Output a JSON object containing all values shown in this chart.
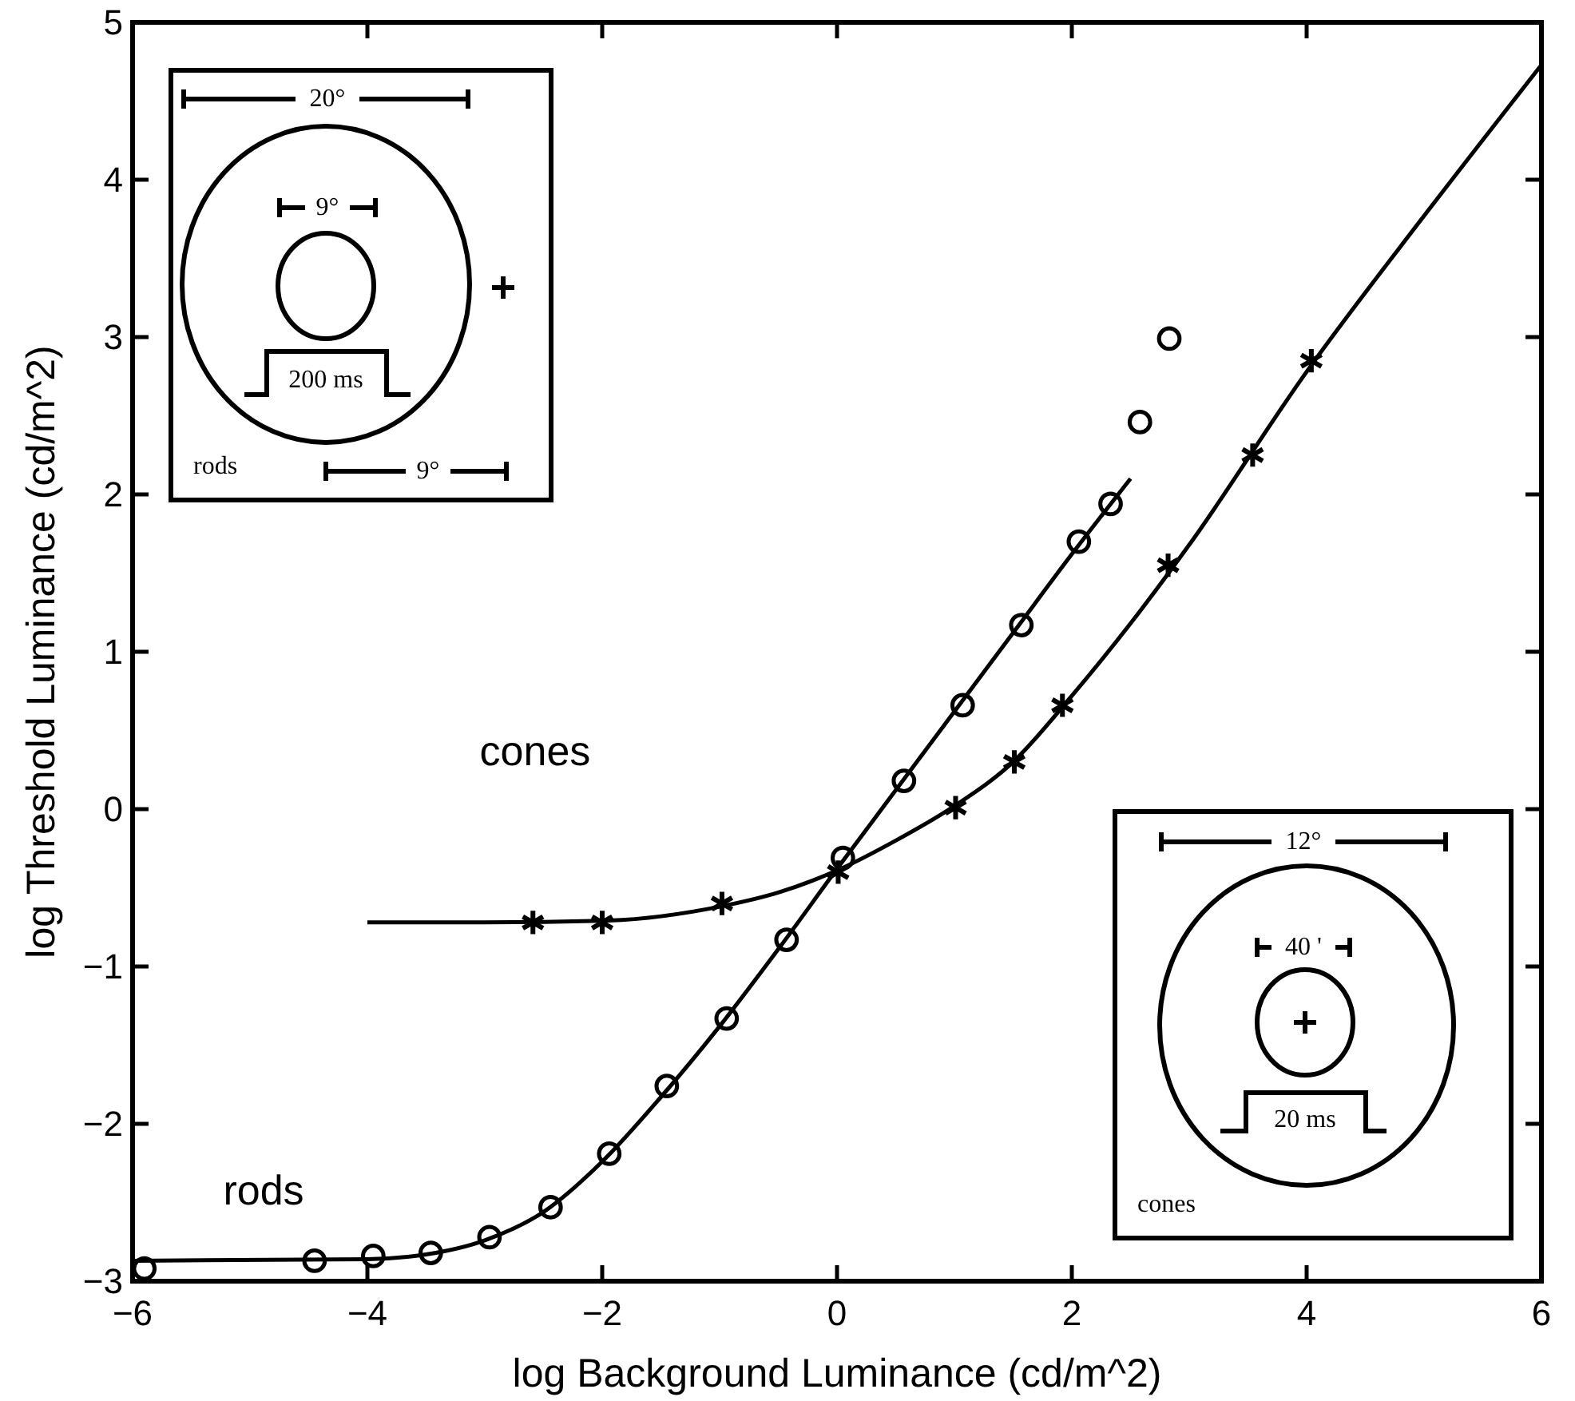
{
  "chart_data": {
    "type": "line",
    "xlabel": "log Background Luminance (cd/m^2)",
    "ylabel": "log Threshold Luminance (cd/m^2)",
    "xlim": [
      -6,
      6
    ],
    "ylim": [
      -3,
      5
    ],
    "xticks": [
      -6,
      -4,
      -2,
      0,
      2,
      4,
      6
    ],
    "yticks": [
      -3,
      -2,
      -1,
      0,
      1,
      2,
      3,
      4,
      5
    ],
    "series": [
      {
        "type": "scatter",
        "marker": "circle",
        "color": "#000000",
        "x": [
          -5.9,
          -4.45,
          -3.95,
          -3.46,
          -2.96,
          -2.44,
          -1.94,
          -1.45,
          -0.94,
          -0.43,
          0.05,
          0.57,
          1.07,
          1.57,
          2.06,
          2.33,
          2.58,
          2.83
        ],
        "values": [
          -2.92,
          -2.87,
          -2.84,
          -2.82,
          -2.72,
          -2.53,
          -2.19,
          -1.76,
          -1.33,
          -0.83,
          -0.31,
          0.18,
          0.66,
          1.17,
          1.7,
          1.94,
          2.46,
          2.99
        ]
      },
      {
        "marker": "none",
        "color": "#000000",
        "x": [
          -6,
          -4,
          -3.5,
          -3,
          -2.5,
          -2,
          -1.5,
          -1,
          -0.5,
          0,
          0.5,
          1,
          1.5,
          2,
          2.5
        ],
        "values": [
          -2.87,
          -2.86,
          -2.83,
          -2.74,
          -2.56,
          -2.24,
          -1.83,
          -1.38,
          -0.89,
          -0.38,
          0.12,
          0.62,
          1.12,
          1.62,
          2.1
        ]
      },
      {
        "type": "scatter",
        "marker": "cross",
        "color": "#000000",
        "x": [
          -2.59,
          -2,
          -0.98,
          0.01,
          1.01,
          1.51,
          1.92,
          2.82,
          3.54,
          4.04
        ],
        "values": [
          -0.72,
          -0.72,
          -0.6,
          -0.4,
          0.01,
          0.3,
          0.66,
          1.55,
          2.25,
          2.85
        ]
      },
      {
        "marker": "none",
        "color": "#000000",
        "x": [
          -4,
          -3,
          -2,
          -1,
          -0.5,
          0,
          0.5,
          1,
          1.5,
          2,
          2.5,
          3,
          4,
          5,
          6
        ],
        "values": [
          -0.72,
          -0.72,
          -0.71,
          -0.62,
          -0.53,
          -0.39,
          -0.2,
          0.02,
          0.3,
          0.72,
          1.18,
          1.68,
          2.78,
          3.77,
          4.73
        ]
      }
    ],
    "annotations": [
      "cones",
      "rods",
      "20°",
      "9°",
      "200 ms",
      "rods",
      "9°",
      "12°",
      "40 '",
      "20 ms",
      "cones"
    ]
  }
}
